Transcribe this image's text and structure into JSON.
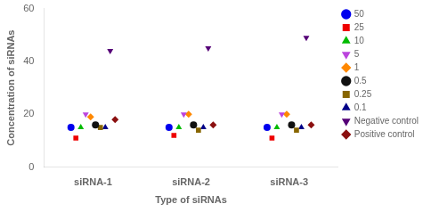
{
  "chart_data": {
    "type": "scatter",
    "x_label": "Type of siRNAs",
    "y_label": "Concentration of siRNAs",
    "categories": [
      "siRNA-1",
      "siRNA-2",
      "siRNA-3"
    ],
    "series": [
      {
        "name": "50",
        "color": "#0000EE",
        "marker": "circle",
        "values": [
          15,
          15,
          15
        ]
      },
      {
        "name": "25",
        "color": "#EE0000",
        "marker": "square",
        "values": [
          11,
          12,
          11
        ]
      },
      {
        "name": "10",
        "color": "#00BB00",
        "marker": "triangle_up",
        "values": [
          15,
          15,
          15
        ]
      },
      {
        "name": "5",
        "color": "#BB44DD",
        "marker": "triangle_down",
        "values": [
          20,
          20,
          20
        ]
      },
      {
        "name": "1",
        "color": "#FF8800",
        "marker": "diamond",
        "values": [
          19,
          20,
          20
        ]
      },
      {
        "name": "0.5",
        "color": "#111111",
        "marker": "circle",
        "values": [
          16,
          16,
          16
        ]
      },
      {
        "name": "0.25",
        "color": "#886600",
        "marker": "square",
        "values": [
          15,
          14,
          14
        ]
      },
      {
        "name": "0.1",
        "color": "#000088",
        "marker": "triangle_up",
        "values": [
          15,
          15,
          15
        ]
      },
      {
        "name": "Negative control",
        "color": "#550077",
        "marker": "triangle_down",
        "values": [
          44,
          45,
          49
        ]
      },
      {
        "name": "Positive control",
        "color": "#8B1010",
        "marker": "diamond",
        "values": [
          18,
          16,
          16
        ]
      }
    ],
    "ylim": [
      0,
      60
    ],
    "yticks": [
      0,
      20,
      40,
      60
    ],
    "grid": false,
    "legend": "right"
  }
}
